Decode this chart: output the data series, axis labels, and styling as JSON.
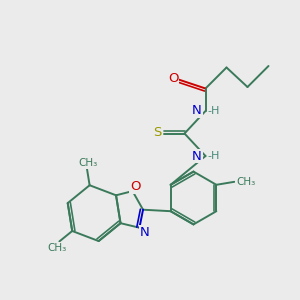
{
  "bg_color": "#ebebeb",
  "bond_color": "#3a7a5a",
  "N_color": "#0000cc",
  "O_color": "#cc0000",
  "S_color": "#999900",
  "H_color": "#4a8a7a",
  "line_width": 1.4,
  "font_size": 8.5,
  "xlim": [
    0,
    10
  ],
  "ylim": [
    0,
    10
  ]
}
